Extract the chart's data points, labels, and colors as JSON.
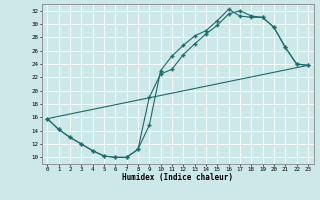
{
  "xlabel": "Humidex (Indice chaleur)",
  "xlim": [
    0,
    23
  ],
  "ylim": [
    9,
    33
  ],
  "yticks": [
    10,
    12,
    14,
    16,
    18,
    20,
    22,
    24,
    26,
    28,
    30,
    32
  ],
  "xticks": [
    0,
    1,
    2,
    3,
    4,
    5,
    6,
    7,
    8,
    9,
    10,
    11,
    12,
    13,
    14,
    15,
    16,
    17,
    18,
    19,
    20,
    21,
    22,
    23
  ],
  "bg_color": "#cce8e8",
  "line_color": "#1a6b6b",
  "grid_color": "#b0d8d8",
  "line1_x": [
    0,
    1,
    2,
    3,
    4,
    5,
    6,
    7,
    8,
    9,
    10,
    11,
    12,
    13,
    14,
    15,
    16,
    17,
    18,
    19,
    20,
    21,
    22,
    23
  ],
  "line1_y": [
    15.8,
    14.2,
    13.0,
    12.0,
    11.0,
    10.2,
    10.0,
    10.0,
    11.2,
    14.8,
    23.0,
    25.2,
    26.8,
    28.2,
    29.0,
    30.5,
    32.2,
    31.2,
    31.0,
    31.0,
    29.5,
    26.5,
    24.0,
    23.8
  ],
  "line2_x": [
    0,
    1,
    2,
    3,
    4,
    5,
    6,
    7,
    8,
    9,
    10,
    11,
    12,
    13,
    14,
    15,
    16,
    17,
    18,
    19,
    20,
    21,
    22,
    23
  ],
  "line2_y": [
    15.8,
    14.2,
    13.0,
    12.0,
    11.0,
    10.2,
    10.0,
    10.0,
    11.2,
    19.0,
    22.5,
    23.2,
    25.4,
    27.0,
    28.5,
    29.8,
    31.5,
    32.0,
    31.2,
    31.0,
    29.5,
    26.5,
    24.0,
    23.8
  ],
  "line3_x": [
    0,
    23
  ],
  "line3_y": [
    15.8,
    23.8
  ]
}
